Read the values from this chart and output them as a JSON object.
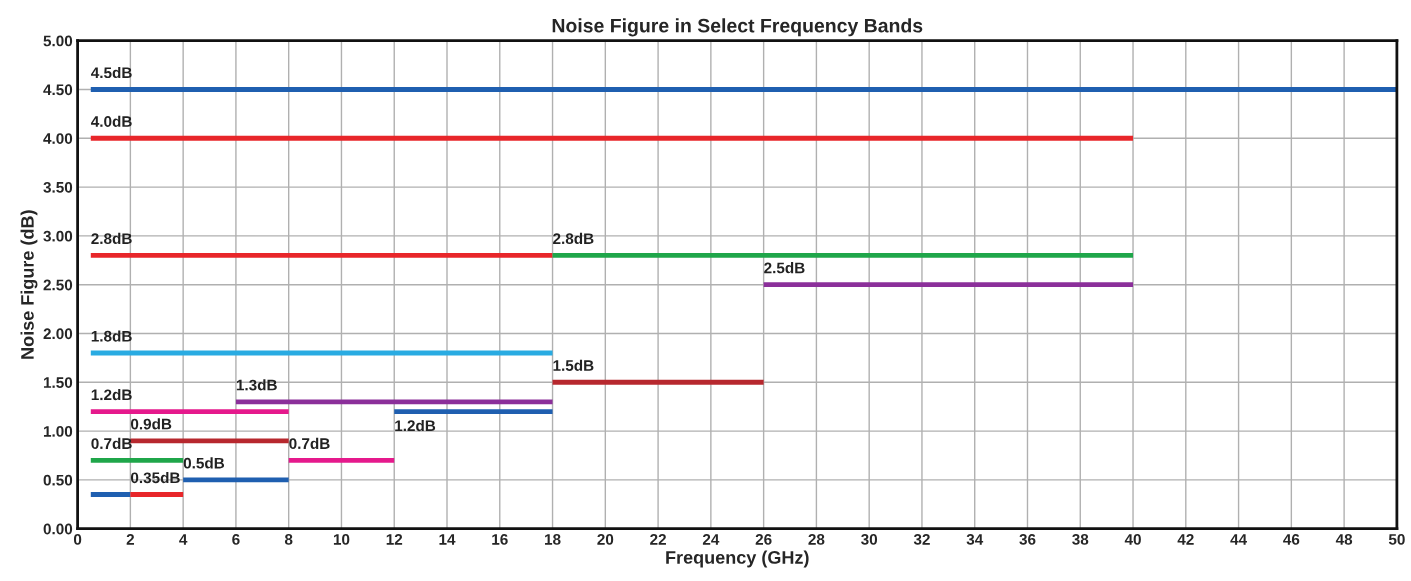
{
  "chart_data": {
    "type": "line",
    "title": "Noise Figure in Select Frequency Bands",
    "xlabel": "Frequency (GHz)",
    "ylabel": "Noise Figure (dB)",
    "xlim": [
      0,
      50
    ],
    "xticks": [
      0,
      2,
      4,
      6,
      8,
      10,
      12,
      14,
      16,
      18,
      20,
      22,
      24,
      26,
      28,
      30,
      32,
      34,
      36,
      38,
      40,
      42,
      44,
      46,
      48,
      50
    ],
    "ylim": [
      0,
      5
    ],
    "yticks": [
      {
        "value": 0,
        "label": "0.00"
      },
      {
        "value": 0.5,
        "label": "0.50"
      },
      {
        "value": 1,
        "label": "1.00"
      },
      {
        "value": 1.5,
        "label": "1.50"
      },
      {
        "value": 2,
        "label": "2.00"
      },
      {
        "value": 2.5,
        "label": "2.50"
      },
      {
        "value": 3,
        "label": "3.00"
      },
      {
        "value": 3.5,
        "label": "3.50"
      },
      {
        "value": 4,
        "label": "4.00"
      },
      {
        "value": 4.5,
        "label": "4.50"
      },
      {
        "value": 5,
        "label": "5.00"
      }
    ],
    "grid": true,
    "marker": "none",
    "line_style": "solid",
    "series": [
      {
        "color": "#1f5fb0",
        "x": [
          0.5,
          50
        ],
        "values": [
          4.5,
          4.5
        ],
        "value_labels": [
          "4.5dB",
          null
        ]
      },
      {
        "color": "#e8262a",
        "x": [
          0.5,
          40
        ],
        "values": [
          4.0,
          4.0
        ],
        "value_labels": [
          "4.0dB",
          null
        ]
      },
      {
        "color": "#e8262a",
        "x": [
          0.5,
          18
        ],
        "values": [
          2.8,
          2.8
        ],
        "value_labels": [
          "2.8dB",
          null
        ]
      },
      {
        "color": "#1fa64a",
        "x": [
          18,
          40
        ],
        "values": [
          2.8,
          2.8
        ],
        "value_labels": [
          "2.8dB",
          null
        ]
      },
      {
        "color": "#8b2f9a",
        "x": [
          26,
          40
        ],
        "values": [
          2.5,
          2.5
        ],
        "value_labels": [
          "2.5dB",
          null
        ]
      },
      {
        "color": "#29abe2",
        "x": [
          0.5,
          18
        ],
        "values": [
          1.8,
          1.8
        ],
        "value_labels": [
          "1.8dB",
          null
        ]
      },
      {
        "color": "#b7282e",
        "x": [
          18,
          26
        ],
        "values": [
          1.5,
          1.5
        ],
        "value_labels": [
          "1.5dB",
          null
        ]
      },
      {
        "color": "#8b2f9a",
        "x": [
          6,
          18
        ],
        "values": [
          1.3,
          1.3
        ],
        "value_labels": [
          "1.3dB",
          null
        ]
      },
      {
        "color": "#e5198c",
        "x": [
          0.5,
          8
        ],
        "values": [
          1.2,
          1.2
        ],
        "value_labels": [
          "1.2dB",
          null
        ]
      },
      {
        "color": "#1f5fb0",
        "x": [
          12,
          18
        ],
        "values": [
          1.2,
          1.2
        ],
        "value_labels": [
          "1.2dB",
          null
        ]
      },
      {
        "color": "#b7282e",
        "x": [
          2,
          8
        ],
        "values": [
          0.9,
          0.9
        ],
        "value_labels": [
          "0.9dB",
          null
        ]
      },
      {
        "color": "#1fa64a",
        "x": [
          0.5,
          4
        ],
        "values": [
          0.7,
          0.7
        ],
        "value_labels": [
          "0.7dB",
          null
        ]
      },
      {
        "color": "#e5198c",
        "x": [
          8,
          12
        ],
        "values": [
          0.7,
          0.7
        ],
        "value_labels": [
          "0.7dB",
          null
        ]
      },
      {
        "color": "#1f5fb0",
        "x": [
          4,
          8
        ],
        "values": [
          0.5,
          0.5
        ],
        "value_labels": [
          "0.5dB",
          null
        ]
      },
      {
        "color": "#1f5fb0",
        "x": [
          0.5,
          2
        ],
        "values": [
          0.35,
          0.35
        ],
        "value_labels": [
          null,
          null
        ]
      },
      {
        "color": "#e8262a",
        "x": [
          2,
          4
        ],
        "values": [
          0.35,
          0.35
        ],
        "value_labels": [
          "0.35dB",
          null
        ]
      }
    ]
  }
}
